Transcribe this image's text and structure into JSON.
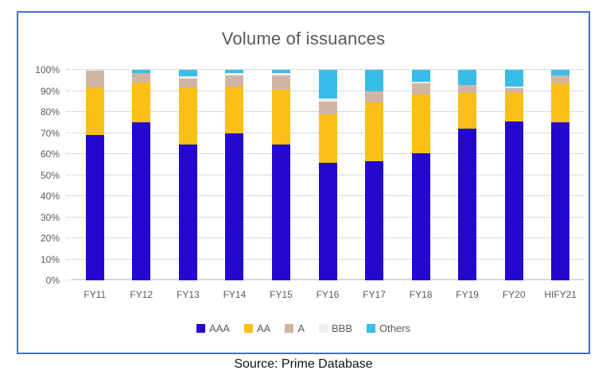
{
  "title": "Volume of issuances",
  "source_note": "Source: Prime Database",
  "frame": {
    "border_color": "#4472C4"
  },
  "colors": {
    "gridline": "#D9D9D9",
    "axis_label": "#595959",
    "title_text": "#595959",
    "source_text": "#111111"
  },
  "chart_data": {
    "type": "bar",
    "stacked": true,
    "percent_stacked": true,
    "title": "Volume of issuances",
    "xlabel": "",
    "ylabel": "",
    "grid": true,
    "legend_position": "bottom",
    "categories": [
      "FY11",
      "FY12",
      "FY13",
      "FY14",
      "FY15",
      "FY16",
      "FY17",
      "FY18",
      "FY19",
      "FY20",
      "HIFY21"
    ],
    "series": [
      {
        "name": "AAA",
        "color": "#2308CD",
        "values": [
          69,
          75,
          64.5,
          70,
          64.5,
          56,
          56.5,
          60.5,
          72,
          75.5,
          75
        ]
      },
      {
        "name": "AA",
        "color": "#FAC016",
        "values": [
          22.5,
          19,
          27,
          22,
          26,
          23,
          28,
          28,
          17,
          13.5,
          18.5
        ]
      },
      {
        "name": "A",
        "color": "#D2B4A3",
        "values": [
          8,
          4.5,
          4.5,
          5.5,
          7,
          6,
          5.5,
          5,
          4,
          2.5,
          4
        ]
      },
      {
        "name": "BBB",
        "color": "#EDEDED",
        "values": [
          0.5,
          0,
          1,
          1,
          1,
          1.5,
          0,
          1,
          0,
          0.5,
          0
        ]
      },
      {
        "name": "Others",
        "color": "#38BCE8",
        "values": [
          0,
          1.5,
          3,
          1.5,
          1.5,
          13.5,
          10,
          5.5,
          7,
          8,
          2.5
        ]
      }
    ],
    "y_axis": {
      "min": 0,
      "max": 100,
      "step": 10,
      "ticks": [
        "0%",
        "10%",
        "20%",
        "30%",
        "40%",
        "50%",
        "60%",
        "70%",
        "80%",
        "90%",
        "100%"
      ]
    }
  }
}
